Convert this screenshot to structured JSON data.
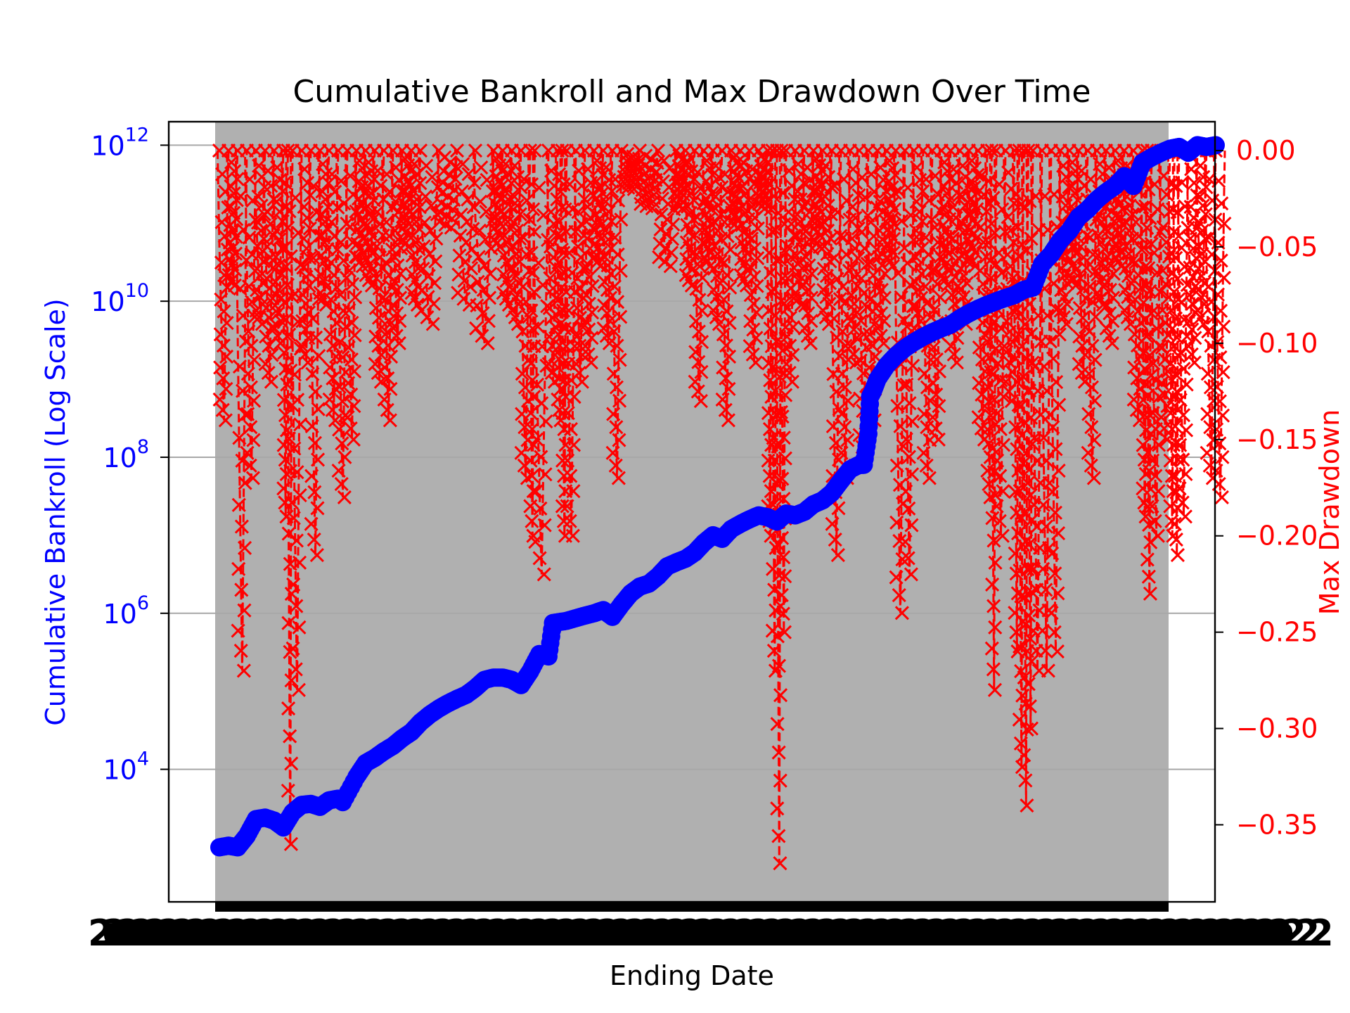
{
  "chart_data": {
    "type": "line",
    "title": "Cumulative Bankroll and Max Drawdown Over Time",
    "xlabel": "Ending Date",
    "x_tick_labels_legible": false,
    "left_axis": {
      "label": "Cumulative Bankroll (Log Scale)",
      "scale": "log",
      "range": [
        200,
        2000000000000
      ],
      "ticks": [
        {
          "value": 10000,
          "base": "10",
          "exp": "4"
        },
        {
          "value": 1000000,
          "base": "10",
          "exp": "6"
        },
        {
          "value": 100000000,
          "base": "10",
          "exp": "8"
        },
        {
          "value": 10000000000,
          "base": "10",
          "exp": "10"
        },
        {
          "value": 1000000000000,
          "base": "10",
          "exp": "12"
        }
      ],
      "color": "#0000ff"
    },
    "right_axis": {
      "label": "Max Drawdown",
      "scale": "linear",
      "range": [
        -0.39,
        0.015
      ],
      "ticks": [
        {
          "value": 0.0,
          "label": "0.00"
        },
        {
          "value": -0.05,
          "label": "−0.05"
        },
        {
          "value": -0.1,
          "label": "−0.10"
        },
        {
          "value": -0.15,
          "label": "−0.15"
        },
        {
          "value": -0.2,
          "label": "−0.20"
        },
        {
          "value": -0.25,
          "label": "−0.25"
        },
        {
          "value": -0.3,
          "label": "−0.30"
        },
        {
          "value": -0.35,
          "label": "−0.35"
        }
      ],
      "color": "#ff0000"
    },
    "grid": true,
    "plot_background": "#b0b0b0",
    "series": [
      {
        "axis": "left",
        "color": "#0000ff",
        "marker": "circle",
        "points": [
          [
            0.0,
            1000
          ],
          [
            0.01,
            1050
          ],
          [
            0.02,
            1000
          ],
          [
            0.03,
            1400
          ],
          [
            0.04,
            2300
          ],
          [
            0.05,
            2400
          ],
          [
            0.06,
            2200
          ],
          [
            0.07,
            1800
          ],
          [
            0.08,
            2800
          ],
          [
            0.09,
            3500
          ],
          [
            0.1,
            3600
          ],
          [
            0.11,
            3300
          ],
          [
            0.12,
            4000
          ],
          [
            0.13,
            4200
          ],
          [
            0.135,
            3800
          ],
          [
            0.15,
            8000
          ],
          [
            0.16,
            12000
          ],
          [
            0.17,
            14000
          ],
          [
            0.18,
            17000
          ],
          [
            0.19,
            20000
          ],
          [
            0.2,
            25000
          ],
          [
            0.21,
            30000
          ],
          [
            0.22,
            40000
          ],
          [
            0.23,
            50000
          ],
          [
            0.24,
            60000
          ],
          [
            0.25,
            70000
          ],
          [
            0.26,
            80000
          ],
          [
            0.27,
            90000
          ],
          [
            0.28,
            110000
          ],
          [
            0.29,
            140000
          ],
          [
            0.3,
            150000
          ],
          [
            0.31,
            150000
          ],
          [
            0.32,
            140000
          ],
          [
            0.33,
            120000
          ],
          [
            0.34,
            180000
          ],
          [
            0.35,
            300000
          ],
          [
            0.36,
            280000
          ],
          [
            0.365,
            750000
          ],
          [
            0.38,
            800000
          ],
          [
            0.395,
            900000
          ],
          [
            0.41,
            1000000
          ],
          [
            0.42,
            1100000
          ],
          [
            0.43,
            900000
          ],
          [
            0.44,
            1300000
          ],
          [
            0.45,
            1800000
          ],
          [
            0.46,
            2200000
          ],
          [
            0.47,
            2400000
          ],
          [
            0.48,
            3000000
          ],
          [
            0.49,
            4000000
          ],
          [
            0.5,
            4500000
          ],
          [
            0.51,
            5000000
          ],
          [
            0.52,
            6000000
          ],
          [
            0.53,
            8000000
          ],
          [
            0.54,
            10000000
          ],
          [
            0.55,
            9000000
          ],
          [
            0.56,
            12000000
          ],
          [
            0.57,
            14000000
          ],
          [
            0.58,
            16000000
          ],
          [
            0.59,
            18000000
          ],
          [
            0.6,
            17000000
          ],
          [
            0.61,
            15000000
          ],
          [
            0.62,
            19000000
          ],
          [
            0.63,
            18000000
          ],
          [
            0.64,
            20000000
          ],
          [
            0.65,
            25000000
          ],
          [
            0.66,
            28000000
          ],
          [
            0.67,
            35000000
          ],
          [
            0.68,
            50000000
          ],
          [
            0.69,
            70000000
          ],
          [
            0.7,
            80000000
          ],
          [
            0.705,
            80000000
          ],
          [
            0.71,
            200000000
          ],
          [
            0.712,
            600000000
          ],
          [
            0.715,
            700000000
          ],
          [
            0.72,
            1000000000
          ],
          [
            0.73,
            1500000000
          ],
          [
            0.74,
            2000000000
          ],
          [
            0.75,
            2500000000
          ],
          [
            0.76,
            3000000000
          ],
          [
            0.77,
            3500000000
          ],
          [
            0.78,
            4000000000
          ],
          [
            0.79,
            4500000000
          ],
          [
            0.8,
            5000000000
          ],
          [
            0.81,
            6000000000
          ],
          [
            0.82,
            7000000000
          ],
          [
            0.83,
            8000000000
          ],
          [
            0.84,
            9000000000
          ],
          [
            0.85,
            10000000000
          ],
          [
            0.86,
            11000000000
          ],
          [
            0.87,
            12000000000
          ],
          [
            0.88,
            14000000000
          ],
          [
            0.89,
            15000000000
          ],
          [
            0.9,
            30000000000
          ],
          [
            0.91,
            40000000000
          ],
          [
            0.92,
            60000000000
          ],
          [
            0.93,
            80000000000
          ],
          [
            0.94,
            120000000000
          ],
          [
            0.95,
            150000000000
          ],
          [
            0.96,
            200000000000
          ],
          [
            0.97,
            250000000000
          ],
          [
            0.98,
            300000000000
          ],
          [
            0.99,
            400000000000
          ],
          [
            1.0,
            300000000000
          ],
          [
            1.01,
            600000000000
          ],
          [
            1.02,
            700000000000
          ],
          [
            1.03,
            800000000000
          ],
          [
            1.04,
            900000000000
          ],
          [
            1.05,
            950000000000
          ],
          [
            1.06,
            800000000000
          ],
          [
            1.07,
            1000000000000
          ],
          [
            1.08,
            950000000000
          ],
          [
            1.09,
            1000000000000
          ]
        ]
      },
      {
        "axis": "right",
        "color": "#ff0000",
        "marker": "x",
        "drops": [
          [
            0.0,
            -0.14
          ],
          [
            0.01,
            -0.07
          ],
          [
            0.02,
            -0.27
          ],
          [
            0.03,
            -0.17
          ],
          [
            0.04,
            -0.09
          ],
          [
            0.05,
            -0.12
          ],
          [
            0.06,
            -0.1
          ],
          [
            0.07,
            -0.19
          ],
          [
            0.075,
            -0.36
          ],
          [
            0.08,
            -0.28
          ],
          [
            0.09,
            -0.11
          ],
          [
            0.1,
            -0.21
          ],
          [
            0.11,
            -0.08
          ],
          [
            0.12,
            -0.14
          ],
          [
            0.13,
            -0.18
          ],
          [
            0.14,
            -0.15
          ],
          [
            0.15,
            -0.06
          ],
          [
            0.16,
            -0.07
          ],
          [
            0.17,
            -0.12
          ],
          [
            0.18,
            -0.14
          ],
          [
            0.19,
            -0.1
          ],
          [
            0.2,
            -0.05
          ],
          [
            0.21,
            -0.08
          ],
          [
            0.22,
            -0.09
          ],
          [
            0.24,
            -0.04
          ],
          [
            0.26,
            -0.08
          ],
          [
            0.28,
            -0.1
          ],
          [
            0.3,
            -0.05
          ],
          [
            0.31,
            -0.08
          ],
          [
            0.32,
            -0.09
          ],
          [
            0.33,
            -0.17
          ],
          [
            0.34,
            -0.2
          ],
          [
            0.345,
            -0.22
          ],
          [
            0.36,
            -0.12
          ],
          [
            0.37,
            -0.14
          ],
          [
            0.375,
            -0.2
          ],
          [
            0.38,
            -0.2
          ],
          [
            0.39,
            -0.12
          ],
          [
            0.4,
            -0.11
          ],
          [
            0.41,
            -0.06
          ],
          [
            0.42,
            -0.1
          ],
          [
            0.43,
            -0.17
          ],
          [
            0.44,
            -0.02
          ],
          [
            0.46,
            -0.03
          ],
          [
            0.48,
            -0.06
          ],
          [
            0.5,
            -0.03
          ],
          [
            0.51,
            -0.07
          ],
          [
            0.52,
            -0.13
          ],
          [
            0.53,
            -0.06
          ],
          [
            0.54,
            -0.09
          ],
          [
            0.55,
            -0.14
          ],
          [
            0.56,
            -0.04
          ],
          [
            0.57,
            -0.07
          ],
          [
            0.58,
            -0.11
          ],
          [
            0.59,
            -0.03
          ],
          [
            0.6,
            -0.2
          ],
          [
            0.605,
            -0.27
          ],
          [
            0.61,
            -0.37
          ],
          [
            0.615,
            -0.25
          ],
          [
            0.62,
            -0.12
          ],
          [
            0.63,
            -0.08
          ],
          [
            0.64,
            -0.1
          ],
          [
            0.65,
            -0.05
          ],
          [
            0.66,
            -0.09
          ],
          [
            0.67,
            -0.21
          ],
          [
            0.68,
            -0.17
          ],
          [
            0.69,
            -0.11
          ],
          [
            0.7,
            -0.16
          ],
          [
            0.71,
            -0.14
          ],
          [
            0.72,
            -0.1
          ],
          [
            0.73,
            -0.06
          ],
          [
            0.74,
            -0.24
          ],
          [
            0.75,
            -0.22
          ],
          [
            0.76,
            -0.1
          ],
          [
            0.77,
            -0.17
          ],
          [
            0.78,
            -0.15
          ],
          [
            0.79,
            -0.07
          ],
          [
            0.8,
            -0.11
          ],
          [
            0.81,
            -0.09
          ],
          [
            0.82,
            -0.06
          ],
          [
            0.83,
            -0.15
          ],
          [
            0.84,
            -0.18
          ],
          [
            0.845,
            -0.28
          ],
          [
            0.85,
            -0.2
          ],
          [
            0.86,
            -0.13
          ],
          [
            0.87,
            -0.26
          ],
          [
            0.875,
            -0.32
          ],
          [
            0.88,
            -0.34
          ],
          [
            0.885,
            -0.3
          ],
          [
            0.89,
            -0.27
          ],
          [
            0.9,
            -0.27
          ],
          [
            0.91,
            -0.26
          ],
          [
            0.92,
            -0.09
          ],
          [
            0.93,
            -0.07
          ],
          [
            0.94,
            -0.12
          ],
          [
            0.95,
            -0.17
          ],
          [
            0.96,
            -0.08
          ],
          [
            0.97,
            -0.1
          ],
          [
            0.98,
            -0.06
          ],
          [
            0.99,
            -0.09
          ],
          [
            1.0,
            -0.14
          ],
          [
            1.01,
            -0.19
          ],
          [
            1.015,
            -0.23
          ],
          [
            1.02,
            -0.2
          ],
          [
            1.03,
            -0.15
          ],
          [
            1.04,
            -0.2
          ],
          [
            1.045,
            -0.21
          ],
          [
            1.05,
            -0.19
          ],
          [
            1.06,
            -0.11
          ],
          [
            1.07,
            -0.09
          ],
          [
            1.08,
            -0.17
          ],
          [
            1.09,
            -0.18
          ]
        ]
      }
    ]
  }
}
